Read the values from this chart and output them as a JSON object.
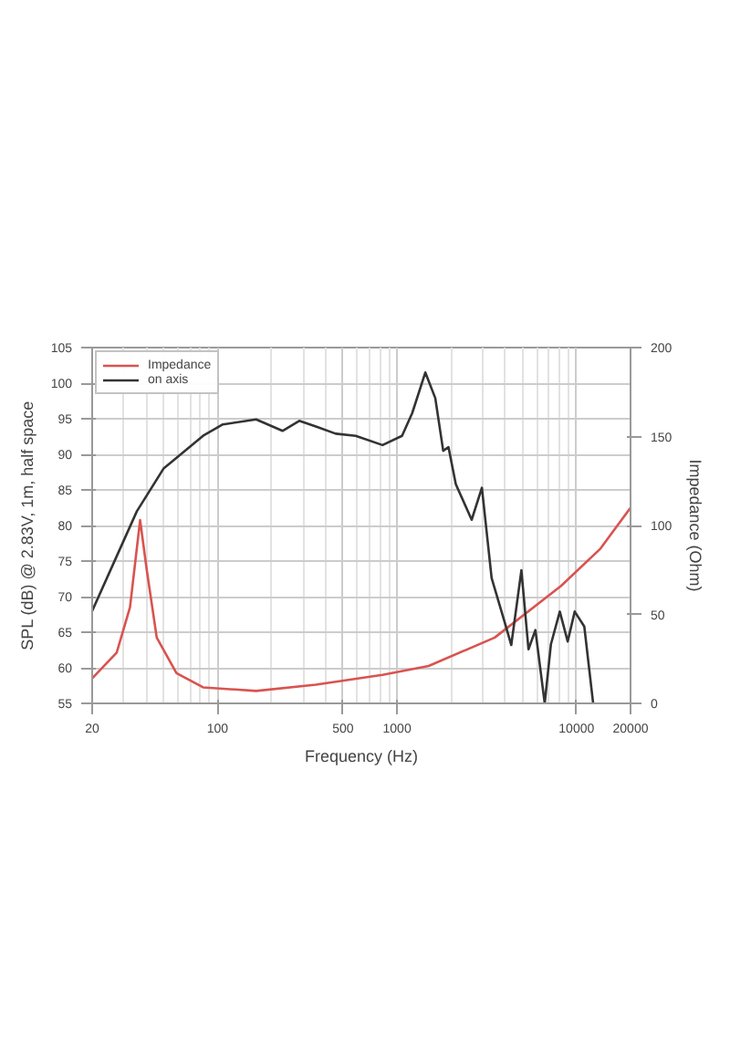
{
  "chart_data": {
    "type": "line",
    "xlabel": "Frequency (Hz)",
    "ylabel": "SPL (dB) @ 2.83V, 1m, half space",
    "y2label": "Impedance (Ohm)",
    "log": "x",
    "xlim": [
      20,
      20000
    ],
    "xticks": [
      20,
      100,
      500,
      1000,
      10000,
      20000
    ],
    "ylim": [
      55,
      105
    ],
    "yticks": [
      55,
      60,
      65,
      70,
      75,
      80,
      85,
      90,
      95,
      100,
      105
    ],
    "y2lim": [
      0,
      200
    ],
    "y2ticks": [
      0,
      50,
      100,
      150,
      200
    ],
    "grid": true,
    "legend": "top left",
    "line_style": "solid",
    "marker": "none",
    "series": [
      {
        "name": "Impedance",
        "color": "#d9534f",
        "axis": "y2",
        "x": [
          20,
          27.4,
          32.5,
          37,
          40.3,
          45.8,
          59,
          83,
          164,
          353,
          830,
          1500,
          3500,
          8200,
          13600,
          20000
        ],
        "values": [
          14,
          28.5,
          54,
          103,
          75,
          37,
          17,
          9,
          7,
          10.5,
          16,
          21,
          37,
          66,
          87,
          110
        ]
      },
      {
        "name": "on axis",
        "color": "#333333",
        "x": [
          20,
          35.5,
          50,
          83,
          107,
          164,
          230,
          285,
          353,
          455,
          588,
          830,
          1066,
          1215,
          1437,
          1633,
          1808,
          1935,
          2125,
          2605,
          2970,
          3365,
          3990,
          4330,
          4930,
          5400,
          5900,
          6650,
          7200,
          8070,
          8930,
          9770,
          11050,
          12380
        ],
        "values": [
          68,
          82,
          88,
          92.6,
          94.2,
          94.9,
          93.3,
          94.7,
          93.9,
          92.9,
          92.6,
          91.3,
          92.6,
          95.8,
          101.5,
          97.9,
          90.5,
          91,
          85.8,
          80.8,
          85.3,
          72.6,
          66.3,
          63.2,
          73.7,
          62.6,
          65.3,
          55,
          63.3,
          67.9,
          63.7,
          67.9,
          65.8,
          55
        ]
      }
    ]
  }
}
